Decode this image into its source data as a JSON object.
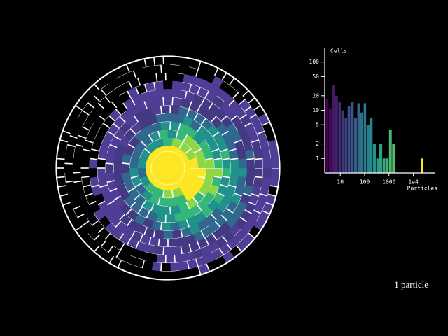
{
  "chart_data": {
    "type": "histogram",
    "ylabel": "Cells",
    "xlabel": "Particles",
    "caption": "1 particle",
    "bins": [
      2.5,
      3.4,
      4.6,
      6.2,
      8.3,
      11,
      15,
      20,
      27,
      37,
      50,
      67,
      91,
      120,
      170,
      220,
      300,
      400,
      550,
      740,
      1000,
      1350,
      1800,
      2450,
      3300,
      4500,
      6000,
      8100,
      11000,
      15000,
      20000,
      27000
    ],
    "values": [
      17,
      11,
      34,
      20,
      15,
      10,
      7,
      12,
      15,
      7,
      14,
      9,
      14,
      5,
      7,
      2,
      1,
      2,
      1,
      1,
      4,
      2,
      0,
      0,
      0,
      0,
      0,
      0,
      0,
      0,
      1
    ],
    "xlim": [
      2.3,
      80000
    ],
    "ylim": [
      0.5,
      200
    ],
    "xscale": "log",
    "yscale": "log",
    "xticks": [
      10,
      100,
      1000,
      {
        "value": 10000,
        "label": "1e4"
      }
    ],
    "yticks": [
      1,
      2,
      5,
      10,
      20,
      50,
      100
    ],
    "colormap": [
      "#440154",
      "#3b528b",
      "#21918c",
      "#5ec962",
      "#fde725"
    ]
  }
}
